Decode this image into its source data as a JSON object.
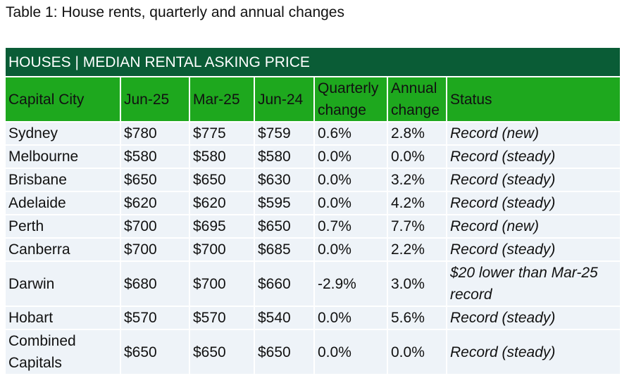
{
  "caption": "Table 1: House rents, quarterly and annual changes",
  "table": {
    "title": "HOUSES | MEDIAN RENTAL ASKING PRICE",
    "headers": [
      "Capital City",
      "Jun-25",
      "Mar-25",
      "Jun-24",
      "Quarterly change",
      "Annual change",
      "Status"
    ],
    "rows": [
      [
        "Sydney",
        "$780",
        "$775",
        "$759",
        "0.6%",
        "2.8%",
        "Record (new)"
      ],
      [
        "Melbourne",
        "$580",
        "$580",
        "$580",
        "0.0%",
        "0.0%",
        "Record (steady)"
      ],
      [
        "Brisbane",
        "$650",
        "$650",
        "$630",
        "0.0%",
        "3.2%",
        "Record (steady)"
      ],
      [
        "Adelaide",
        "$620",
        "$620",
        "$595",
        "0.0%",
        "4.2%",
        "Record (steady)"
      ],
      [
        "Perth",
        "$700",
        "$695",
        "$650",
        "0.7%",
        "7.7%",
        "Record (new)"
      ],
      [
        "Canberra",
        "$700",
        "$700",
        "$685",
        "0.0%",
        "2.2%",
        "Record (steady)"
      ],
      [
        "Darwin",
        "$680",
        "$700",
        "$660",
        "-2.9%",
        "3.0%",
        "$20 lower than Mar-25 record"
      ],
      [
        "Hobart",
        "$570",
        "$570",
        "$540",
        "0.0%",
        "5.6%",
        "Record (steady)"
      ],
      [
        "Combined Capitals",
        "$650",
        "$650",
        "$650",
        "0.0%",
        "0.0%",
        "Record (steady)"
      ]
    ]
  },
  "colors": {
    "title_bg": "#0a5c36",
    "header_bg": "#1ea81e",
    "row_bg": "#eef3f8"
  }
}
